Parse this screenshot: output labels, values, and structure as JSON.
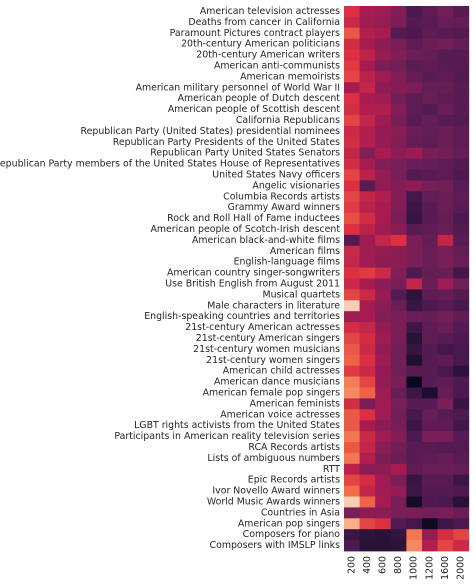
{
  "chart_data": {
    "type": "heatmap",
    "title": "",
    "xlabel": "",
    "ylabel": "",
    "colormap": "rocket",
    "color_range": [
      0,
      1
    ],
    "legend": "none",
    "grid": false,
    "x": [
      "200",
      "400",
      "600",
      "800",
      "1000",
      "1200",
      "1600",
      "2000"
    ],
    "y": [
      "American television actresses",
      "Deaths from cancer in California",
      "Paramount Pictures contract players",
      "20th-century American politicians",
      "20th-century American writers",
      "American anti-communists",
      "American memoirists",
      "American military personnel of World War II",
      "American people of Dutch descent",
      "American people of Scottish descent",
      "California Republicans",
      "Republican Party (United States) presidential nominees",
      "Republican Party Presidents of the United States",
      "Republican Party United States Senators",
      "Republican Party members of the United States House of Representatives",
      "United States Navy officers",
      "Angelic visionaries",
      "Columbia Records artists",
      "Grammy Award winners",
      "Rock and Roll Hall of Fame inductees",
      "American people of Scotch-Irish descent",
      "American black-and-white films",
      "American films",
      "English-language films",
      "American country singer-songwriters",
      "Use British English from August 2011",
      "Musical quartets",
      "Male characters in literature",
      "English-speaking countries and territories",
      "21st-century American actresses",
      "21st-century American singers",
      "21st-century women musicians",
      "21st-century women singers",
      "American child actresses",
      "American dance musicians",
      "American female pop singers",
      "American feminists",
      "American voice actresses",
      "LGBT rights activists from the United States",
      "Participants in American reality television series",
      "RCA Records artists",
      "Lists of ambiguous numbers",
      "RTT",
      "Epic Records artists",
      "Ivor Novello Award winners",
      "World Music Awards winners",
      "Countries in Asia",
      "American pop singers",
      "Composers for piano",
      "Composers with IMSLP links"
    ],
    "values": [
      [
        0.62,
        0.5,
        0.48,
        0.42,
        0.25,
        0.32,
        0.38,
        0.3
      ],
      [
        0.58,
        0.48,
        0.46,
        0.4,
        0.28,
        0.3,
        0.35,
        0.34
      ],
      [
        0.7,
        0.52,
        0.5,
        0.28,
        0.26,
        0.32,
        0.3,
        0.28
      ],
      [
        0.6,
        0.5,
        0.44,
        0.4,
        0.32,
        0.36,
        0.38,
        0.34
      ],
      [
        0.62,
        0.55,
        0.46,
        0.42,
        0.36,
        0.34,
        0.3,
        0.3
      ],
      [
        0.64,
        0.5,
        0.4,
        0.38,
        0.3,
        0.32,
        0.3,
        0.3
      ],
      [
        0.66,
        0.54,
        0.48,
        0.42,
        0.34,
        0.3,
        0.32,
        0.28
      ],
      [
        0.5,
        0.56,
        0.44,
        0.42,
        0.4,
        0.34,
        0.34,
        0.3
      ],
      [
        0.62,
        0.5,
        0.48,
        0.38,
        0.32,
        0.36,
        0.32,
        0.3
      ],
      [
        0.6,
        0.52,
        0.52,
        0.42,
        0.32,
        0.28,
        0.36,
        0.3
      ],
      [
        0.66,
        0.56,
        0.48,
        0.4,
        0.3,
        0.34,
        0.3,
        0.28
      ],
      [
        0.58,
        0.52,
        0.46,
        0.44,
        0.36,
        0.34,
        0.36,
        0.32
      ],
      [
        0.6,
        0.52,
        0.46,
        0.42,
        0.34,
        0.32,
        0.36,
        0.32
      ],
      [
        0.56,
        0.42,
        0.5,
        0.44,
        0.48,
        0.4,
        0.38,
        0.34
      ],
      [
        0.6,
        0.5,
        0.42,
        0.4,
        0.36,
        0.34,
        0.32,
        0.28
      ],
      [
        0.66,
        0.54,
        0.46,
        0.4,
        0.28,
        0.3,
        0.32,
        0.26
      ],
      [
        0.62,
        0.3,
        0.46,
        0.42,
        0.44,
        0.4,
        0.38,
        0.3
      ],
      [
        0.66,
        0.56,
        0.52,
        0.42,
        0.22,
        0.34,
        0.36,
        0.32
      ],
      [
        0.64,
        0.54,
        0.5,
        0.42,
        0.2,
        0.3,
        0.36,
        0.3
      ],
      [
        0.68,
        0.6,
        0.5,
        0.4,
        0.18,
        0.3,
        0.34,
        0.26
      ],
      [
        0.62,
        0.54,
        0.48,
        0.44,
        0.3,
        0.32,
        0.36,
        0.28
      ],
      [
        0.28,
        0.48,
        0.56,
        0.62,
        0.4,
        0.34,
        0.56,
        0.3
      ],
      [
        0.58,
        0.48,
        0.46,
        0.44,
        0.4,
        0.36,
        0.4,
        0.34
      ],
      [
        0.56,
        0.48,
        0.44,
        0.44,
        0.4,
        0.36,
        0.4,
        0.36
      ],
      [
        0.62,
        0.64,
        0.58,
        0.42,
        0.26,
        0.34,
        0.36,
        0.22
      ],
      [
        0.58,
        0.5,
        0.44,
        0.4,
        0.56,
        0.36,
        0.48,
        0.38
      ],
      [
        0.66,
        0.58,
        0.46,
        0.28,
        0.14,
        0.32,
        0.34,
        0.28
      ],
      [
        0.94,
        0.5,
        0.44,
        0.36,
        0.18,
        0.26,
        0.3,
        0.24
      ],
      [
        0.48,
        0.5,
        0.42,
        0.4,
        0.36,
        0.34,
        0.38,
        0.32
      ],
      [
        0.6,
        0.56,
        0.46,
        0.4,
        0.2,
        0.32,
        0.36,
        0.28
      ],
      [
        0.66,
        0.6,
        0.48,
        0.4,
        0.12,
        0.32,
        0.3,
        0.26
      ],
      [
        0.7,
        0.58,
        0.46,
        0.38,
        0.18,
        0.28,
        0.22,
        0.24
      ],
      [
        0.72,
        0.62,
        0.48,
        0.38,
        0.1,
        0.28,
        0.32,
        0.24
      ],
      [
        0.64,
        0.58,
        0.46,
        0.38,
        0.3,
        0.3,
        0.24,
        0.14
      ],
      [
        0.78,
        0.66,
        0.46,
        0.4,
        0.02,
        0.3,
        0.32,
        0.26
      ],
      [
        0.8,
        0.72,
        0.48,
        0.36,
        0.2,
        0.08,
        0.34,
        0.26
      ],
      [
        0.6,
        0.4,
        0.48,
        0.4,
        0.3,
        0.3,
        0.4,
        0.18
      ],
      [
        0.7,
        0.62,
        0.48,
        0.38,
        0.24,
        0.34,
        0.3,
        0.26
      ],
      [
        0.7,
        0.5,
        0.44,
        0.4,
        0.2,
        0.32,
        0.32,
        0.22
      ],
      [
        0.76,
        0.58,
        0.48,
        0.42,
        0.26,
        0.4,
        0.4,
        0.3
      ],
      [
        0.7,
        0.56,
        0.44,
        0.38,
        0.3,
        0.3,
        0.28,
        0.28
      ],
      [
        0.76,
        0.52,
        0.4,
        0.36,
        0.3,
        0.32,
        0.34,
        0.3
      ],
      [
        0.54,
        0.44,
        0.44,
        0.5,
        0.32,
        0.36,
        0.36,
        0.34
      ],
      [
        0.66,
        0.6,
        0.48,
        0.4,
        0.18,
        0.3,
        0.3,
        0.2
      ],
      [
        0.74,
        0.56,
        0.48,
        0.46,
        0.2,
        0.28,
        0.28,
        0.26
      ],
      [
        0.94,
        0.72,
        0.5,
        0.4,
        0.06,
        0.26,
        0.24,
        0.12
      ],
      [
        0.4,
        0.44,
        0.44,
        0.4,
        0.4,
        0.38,
        0.4,
        0.36
      ],
      [
        0.88,
        0.66,
        0.62,
        0.28,
        0.22,
        0.04,
        0.2,
        0.26
      ],
      [
        0.2,
        0.14,
        0.12,
        0.16,
        0.76,
        0.46,
        0.6,
        0.66
      ],
      [
        0.26,
        0.12,
        0.12,
        0.14,
        0.8,
        0.52,
        0.66,
        0.58
      ]
    ]
  }
}
